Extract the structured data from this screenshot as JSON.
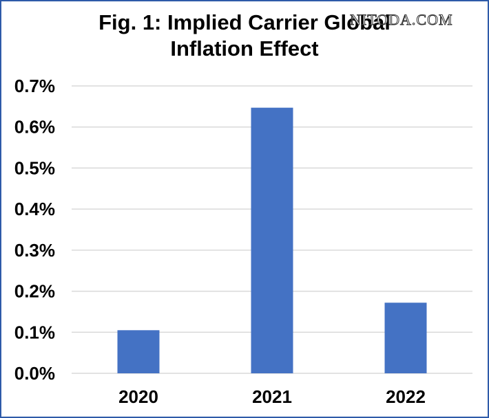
{
  "watermark": "NITODA.COM",
  "chart_data": {
    "type": "bar",
    "title": "Fig. 1: Implied Carrier Global\nInflation Effect",
    "categories": [
      "2020",
      "2021",
      "2022"
    ],
    "values": [
      0.105,
      0.647,
      0.172
    ],
    "value_unit": "%",
    "xlabel": "",
    "ylabel": "",
    "ylim": [
      0,
      0.7
    ],
    "yticks": [
      "0.0%",
      "0.1%",
      "0.2%",
      "0.3%",
      "0.4%",
      "0.5%",
      "0.6%",
      "0.7%"
    ],
    "ytick_values": [
      0,
      0.1,
      0.2,
      0.3,
      0.4,
      0.5,
      0.6,
      0.7
    ],
    "grid": true,
    "legend": "none",
    "bar_color": "#4472c4",
    "grid_color": "#d9d9d9",
    "frame_color": "#2e5aa8"
  }
}
